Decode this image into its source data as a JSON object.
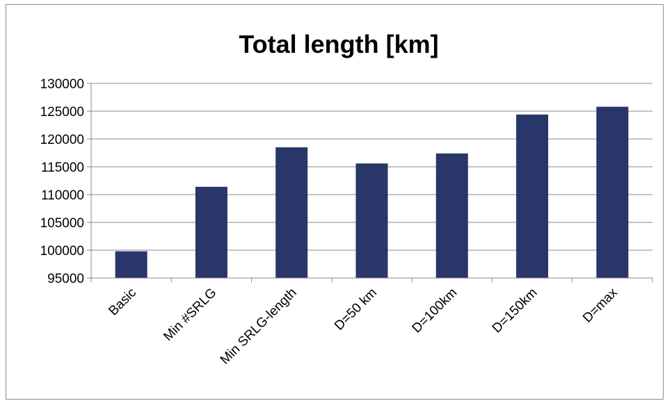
{
  "chart_data": {
    "type": "bar",
    "title": "Total length [km]",
    "xlabel": "",
    "ylabel": "",
    "categories": [
      "Basic",
      "Min #SRLG",
      "Min SRLG-length",
      "D=50 km",
      "D=100km",
      "D=150km",
      "D=max"
    ],
    "values": [
      99800,
      111400,
      118500,
      115600,
      117400,
      124400,
      125800
    ],
    "ylim": [
      95000,
      130000
    ],
    "yticks": [
      95000,
      100000,
      105000,
      110000,
      115000,
      120000,
      125000,
      130000
    ],
    "grid": true,
    "legend": "none",
    "bar_color": "#29366a"
  }
}
